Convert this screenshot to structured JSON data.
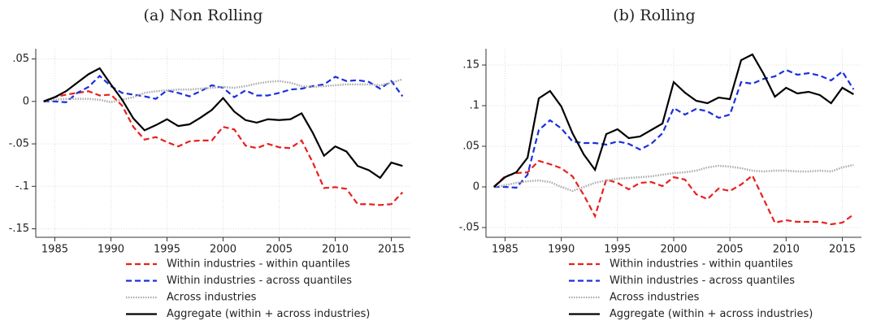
{
  "chart_data": [
    {
      "type": "line",
      "title": "(a) Non Rolling",
      "x": [
        1984,
        1985,
        1986,
        1987,
        1988,
        1989,
        1990,
        1991,
        1992,
        1993,
        1994,
        1995,
        1996,
        1997,
        1998,
        1999,
        2000,
        2001,
        2002,
        2003,
        2004,
        2005,
        2006,
        2007,
        2008,
        2009,
        2010,
        2011,
        2012,
        2013,
        2014,
        2015,
        2016
      ],
      "xlim": [
        1983.3,
        2016.7
      ],
      "xticks": [
        1985,
        1990,
        1995,
        2000,
        2005,
        2010,
        2015
      ],
      "ylim": [
        -0.16,
        0.062
      ],
      "yticks": [
        {
          "value": 0.05,
          "label": ".05"
        },
        0,
        {
          "value": -0.05,
          "label": "-.05"
        },
        {
          "value": -0.1,
          "label": "-.1"
        },
        {
          "value": -0.15,
          "label": "-.15"
        }
      ],
      "grid": true,
      "series": [
        {
          "name": "Within industries - within quantiles",
          "color": "#e8201e",
          "style": "dashed",
          "values": [
            0,
            0.005,
            0.008,
            0.01,
            0.012,
            0.007,
            0.008,
            -0.005,
            -0.03,
            -0.045,
            -0.042,
            -0.048,
            -0.053,
            -0.047,
            -0.046,
            -0.046,
            -0.03,
            -0.033,
            -0.052,
            -0.055,
            -0.05,
            -0.054,
            -0.055,
            -0.046,
            -0.072,
            -0.102,
            -0.101,
            -0.103,
            -0.121,
            -0.121,
            -0.122,
            -0.121,
            -0.107
          ]
        },
        {
          "name": "Within industries - across quantiles",
          "color": "#1b2fe0",
          "style": "dashed",
          "values": [
            0,
            0,
            -0.001,
            0.01,
            0.017,
            0.03,
            0.018,
            0.01,
            0.008,
            0.006,
            0.003,
            0.013,
            0.01,
            0.006,
            0.012,
            0.019,
            0.016,
            0.005,
            0.013,
            0.007,
            0.007,
            0.01,
            0.014,
            0.015,
            0.018,
            0.02,
            0.029,
            0.024,
            0.025,
            0.023,
            0.015,
            0.024,
            0.006
          ]
        },
        {
          "name": "Across industries",
          "color": "#aaaaaa",
          "style": "dotted",
          "values": [
            0,
            0.002,
            0.003,
            0.003,
            0.003,
            0.002,
            -0.001,
            0.002,
            0.005,
            0.01,
            0.012,
            0.013,
            0.014,
            0.014,
            0.015,
            0.016,
            0.017,
            0.016,
            0.018,
            0.021,
            0.023,
            0.024,
            0.022,
            0.018,
            0.017,
            0.018,
            0.019,
            0.02,
            0.02,
            0.02,
            0.019,
            0.022,
            0.026
          ]
        },
        {
          "name": "Aggregate (within + across industries)",
          "color": "#000000",
          "style": "solid",
          "values": [
            0,
            0.005,
            0.012,
            0.022,
            0.032,
            0.039,
            0.02,
            0.002,
            -0.02,
            -0.034,
            -0.028,
            -0.021,
            -0.029,
            -0.027,
            -0.019,
            -0.01,
            0.004,
            -0.012,
            -0.022,
            -0.025,
            -0.021,
            -0.022,
            -0.021,
            -0.014,
            -0.037,
            -0.064,
            -0.053,
            -0.059,
            -0.076,
            -0.081,
            -0.09,
            -0.072,
            -0.076
          ]
        }
      ]
    },
    {
      "type": "line",
      "title": "(b) Rolling",
      "x": [
        1984,
        1985,
        1986,
        1987,
        1988,
        1989,
        1990,
        1991,
        1992,
        1993,
        1994,
        1995,
        1996,
        1997,
        1998,
        1999,
        2000,
        2001,
        2002,
        2003,
        2004,
        2005,
        2006,
        2007,
        2008,
        2009,
        2010,
        2011,
        2012,
        2013,
        2014,
        2015,
        2016
      ],
      "xlim": [
        1983.3,
        2016.7
      ],
      "xticks": [
        1985,
        1990,
        1995,
        2000,
        2005,
        2010,
        2015
      ],
      "ylim": [
        -0.062,
        0.17
      ],
      "yticks": [
        {
          "value": 0.15,
          "label": ".15"
        },
        {
          "value": 0.1,
          "label": ".1"
        },
        {
          "value": 0.05,
          "label": ".05"
        },
        0,
        {
          "value": -0.05,
          "label": "-.05"
        }
      ],
      "grid": true,
      "series": [
        {
          "name": "Within industries - within quantiles",
          "color": "#e8201e",
          "style": "dashed",
          "values": [
            0,
            0.013,
            0.017,
            0.018,
            0.032,
            0.028,
            0.023,
            0.013,
            -0.01,
            -0.036,
            0.009,
            0.005,
            -0.003,
            0.005,
            0.006,
            0.001,
            0.012,
            0.009,
            -0.009,
            -0.015,
            -0.002,
            -0.005,
            0.003,
            0.014,
            -0.015,
            -0.044,
            -0.041,
            -0.043,
            -0.043,
            -0.043,
            -0.046,
            -0.044,
            -0.034
          ]
        },
        {
          "name": "Within industries - across quantiles",
          "color": "#1b2fe0",
          "style": "dashed",
          "values": [
            0,
            0,
            -0.001,
            0.015,
            0.07,
            0.082,
            0.072,
            0.056,
            0.054,
            0.054,
            0.052,
            0.056,
            0.053,
            0.046,
            0.053,
            0.066,
            0.097,
            0.089,
            0.096,
            0.093,
            0.085,
            0.089,
            0.129,
            0.127,
            0.133,
            0.136,
            0.144,
            0.138,
            0.14,
            0.137,
            0.131,
            0.142,
            0.12
          ]
        },
        {
          "name": "Across industries",
          "color": "#aaaaaa",
          "style": "dotted",
          "values": [
            0,
            0.002,
            0.005,
            0.007,
            0.008,
            0.006,
            0,
            -0.005,
            0,
            0.005,
            0.008,
            0.01,
            0.011,
            0.012,
            0.013,
            0.015,
            0.017,
            0.018,
            0.02,
            0.024,
            0.026,
            0.025,
            0.023,
            0.02,
            0.019,
            0.02,
            0.02,
            0.019,
            0.019,
            0.02,
            0.019,
            0.024,
            0.027
          ]
        },
        {
          "name": "Aggregate (within + across industries)",
          "color": "#000000",
          "style": "solid",
          "values": [
            0,
            0.012,
            0.018,
            0.036,
            0.109,
            0.118,
            0.099,
            0.066,
            0.04,
            0.021,
            0.065,
            0.071,
            0.06,
            0.062,
            0.07,
            0.078,
            0.129,
            0.116,
            0.106,
            0.103,
            0.11,
            0.108,
            0.156,
            0.163,
            0.139,
            0.111,
            0.122,
            0.115,
            0.117,
            0.113,
            0.103,
            0.122,
            0.114
          ]
        }
      ]
    }
  ]
}
